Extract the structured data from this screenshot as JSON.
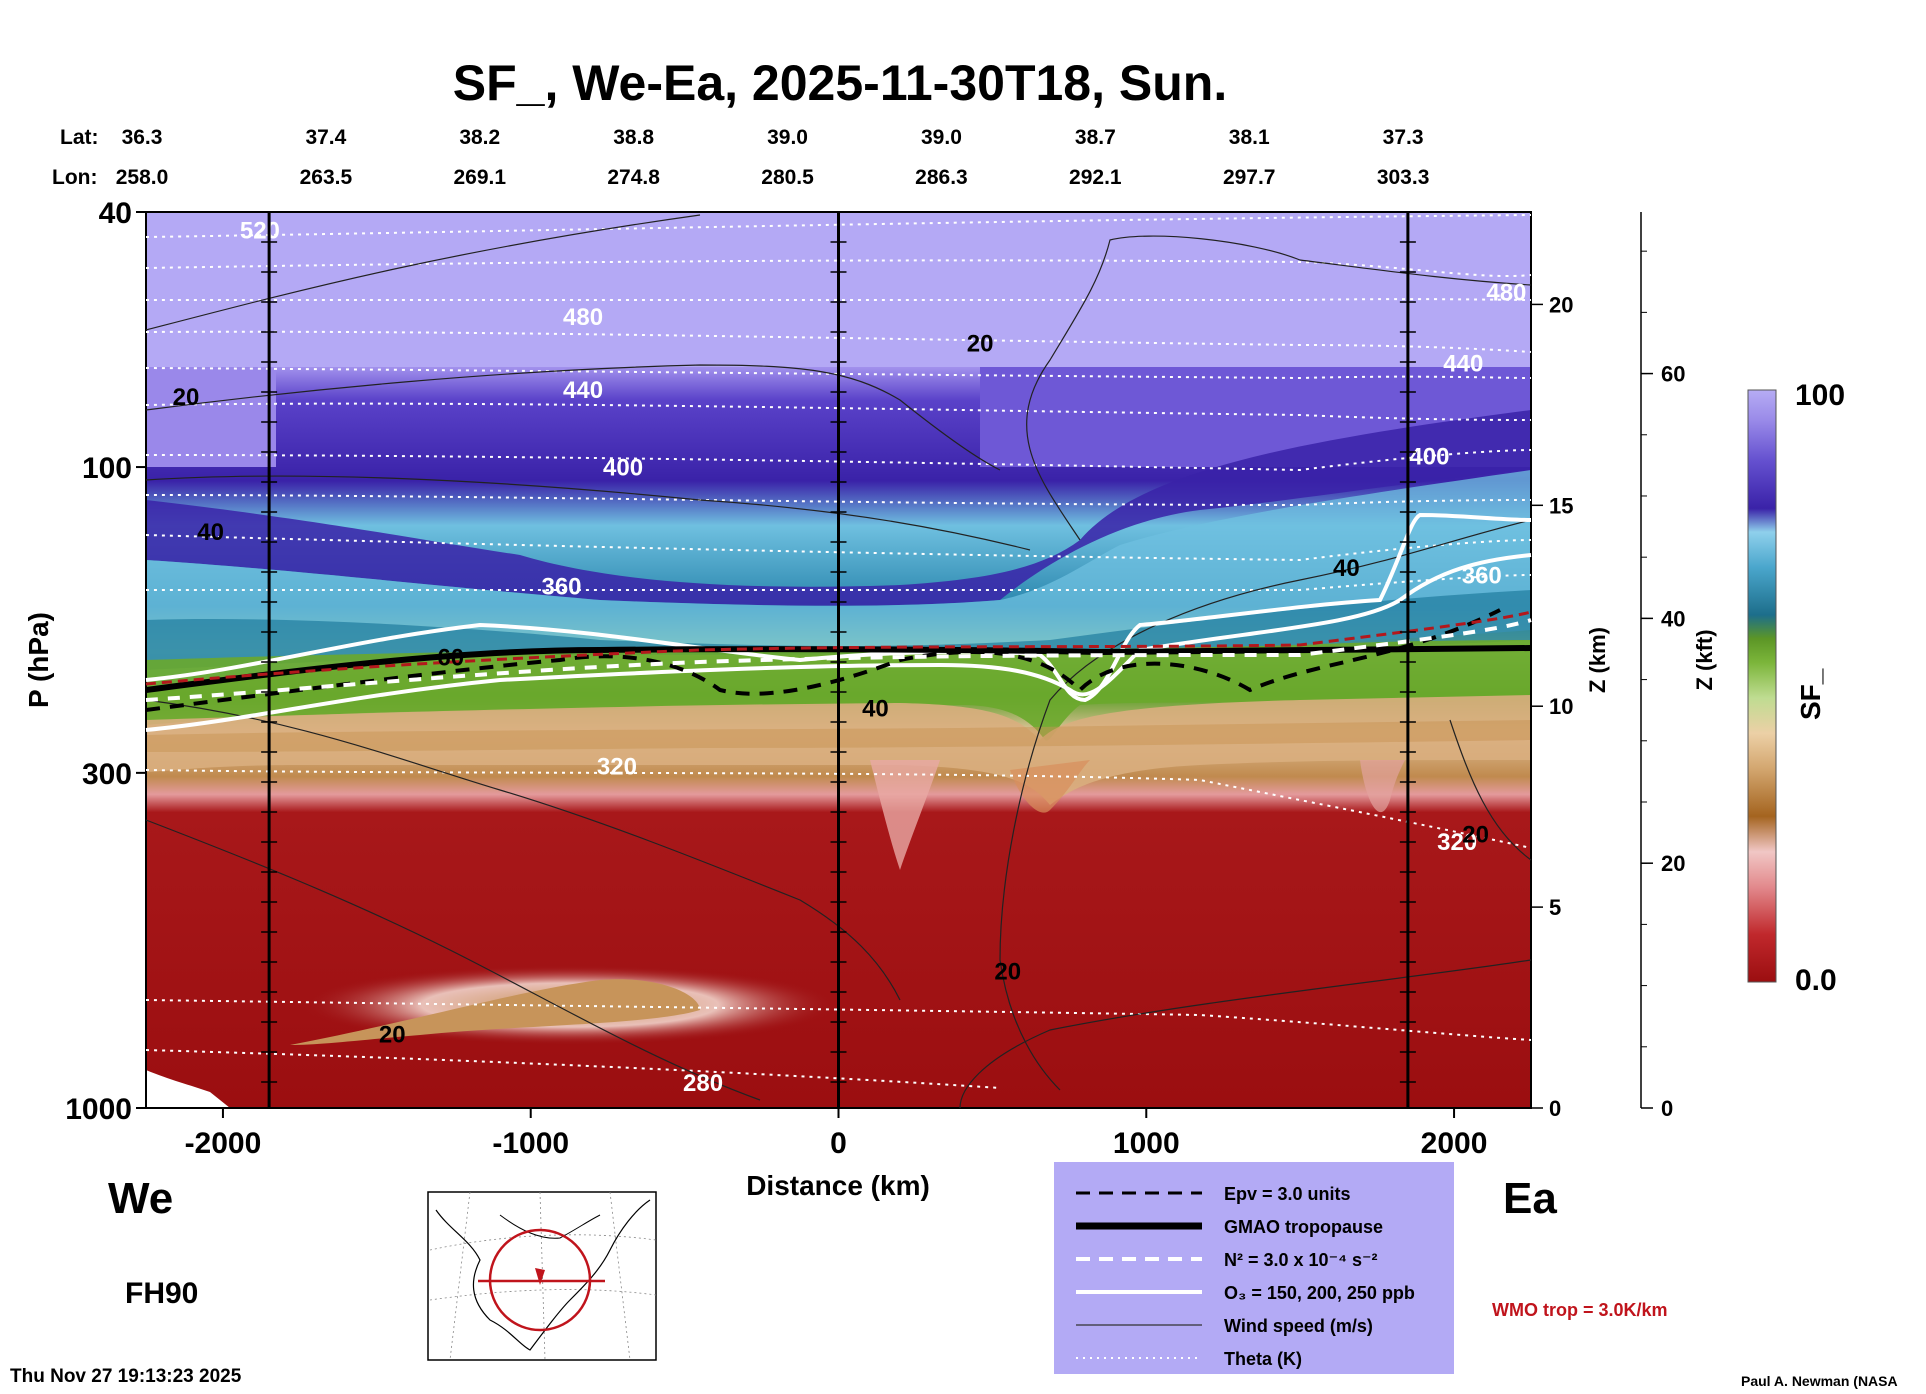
{
  "chart_data": {
    "type": "heatmap",
    "title": "SF_, We-Ea, 2025-11-30T18, Sun.",
    "xlabel": "Distance (km)",
    "ylabel": "P (hPa)",
    "y2label": "Z (km)",
    "y3label": "Z (kft)",
    "colorbar_label": "SF_",
    "colorbar_range": [
      0.0,
      100
    ],
    "colorbar_max_label": "100",
    "colorbar_min_label": "0.0",
    "xlim": [
      -2250,
      2250
    ],
    "ylim_hpa": [
      1000,
      40
    ],
    "x_ticks": [
      {
        "value": -2000,
        "label": "-2000"
      },
      {
        "value": -1000,
        "label": "-1000"
      },
      {
        "value": 0,
        "label": "0"
      },
      {
        "value": 1000,
        "label": "1000"
      },
      {
        "value": 2000,
        "label": "2000"
      }
    ],
    "p_ticks": [
      {
        "value": 40,
        "label": "40"
      },
      {
        "value": 100,
        "label": "100"
      },
      {
        "value": 300,
        "label": "300"
      },
      {
        "value": 1000,
        "label": "1000"
      }
    ],
    "z_km_ticks": [
      {
        "value": 0,
        "label": "0"
      },
      {
        "value": 5,
        "label": "5"
      },
      {
        "value": 10,
        "label": "10"
      },
      {
        "value": 15,
        "label": "15"
      },
      {
        "value": 20,
        "label": "20"
      }
    ],
    "z_kft_ticks": [
      {
        "value": 0,
        "label": "0"
      },
      {
        "value": 20,
        "label": "20"
      },
      {
        "value": 40,
        "label": "40"
      },
      {
        "value": 60,
        "label": "60"
      }
    ],
    "lat_header": "Lat:",
    "lon_header": "Lon:",
    "positions": [
      {
        "lat": "36.3",
        "lon": "258.0",
        "x": -2250
      },
      {
        "lat": "37.4",
        "lon": "263.5",
        "x": -1750
      },
      {
        "lat": "38.2",
        "lon": "269.1",
        "x": -1250
      },
      {
        "lat": "38.8",
        "lon": "274.8",
        "x": -750
      },
      {
        "lat": "39.0",
        "lon": "280.5",
        "x": -250
      },
      {
        "lat": "39.0",
        "lon": "286.3",
        "x": 250
      },
      {
        "lat": "38.7",
        "lon": "292.1",
        "x": 750
      },
      {
        "lat": "38.1",
        "lon": "297.7",
        "x": 1250
      },
      {
        "lat": "37.3",
        "lon": "303.3",
        "x": 1750
      }
    ],
    "vertical_markers_km": [
      -1850,
      0,
      1850
    ],
    "theta_labels": [
      {
        "text": "520",
        "x": -1880,
        "p": 44
      },
      {
        "text": "480",
        "x": -830,
        "p": 60
      },
      {
        "text": "440",
        "x": -830,
        "p": 78
      },
      {
        "text": "400",
        "x": -700,
        "p": 103
      },
      {
        "text": "360",
        "x": -900,
        "p": 158
      },
      {
        "text": "320",
        "x": -720,
        "p": 302
      },
      {
        "text": "280",
        "x": -440,
        "p": 940
      },
      {
        "text": "480",
        "x": 2170,
        "p": 55
      },
      {
        "text": "440",
        "x": 2030,
        "p": 71
      },
      {
        "text": "400",
        "x": 1920,
        "p": 99
      },
      {
        "text": "360",
        "x": 2090,
        "p": 152
      },
      {
        "text": "320",
        "x": 2010,
        "p": 396
      }
    ],
    "wind_labels": [
      {
        "text": "20",
        "x": -2120,
        "p": 80
      },
      {
        "text": "40",
        "x": -2040,
        "p": 130
      },
      {
        "text": "60",
        "x": -1260,
        "p": 204
      },
      {
        "text": "20",
        "x": 460,
        "p": 66
      },
      {
        "text": "40",
        "x": 120,
        "p": 245
      },
      {
        "text": "40",
        "x": 1650,
        "p": 148
      },
      {
        "text": "20",
        "x": 550,
        "p": 630
      },
      {
        "text": "20",
        "x": -1450,
        "p": 790
      },
      {
        "text": "20",
        "x": 2070,
        "p": 385
      }
    ],
    "legend_title_stub": "WMO trop = 3.0K/km"
  },
  "legend": {
    "items": [
      {
        "label": "Epv = 3.0 units",
        "style": "dashed-black"
      },
      {
        "label": "GMAO tropopause",
        "style": "thick-black"
      },
      {
        "label": "N² = 3.0 x 10⁻⁴ s⁻²",
        "style": "dashed-white"
      },
      {
        "label": "O₃ = 150, 200, 250 ppb",
        "style": "thick-white"
      },
      {
        "label": "Wind speed (m/s)",
        "style": "thin-black"
      },
      {
        "label": "Theta (K)",
        "style": "dotted-white"
      }
    ],
    "bg_color": "#b3aaf5",
    "wmo_trop": "WMO trop = 3.0K/km",
    "wmo_color": "#c0141c"
  },
  "labels": {
    "west": "We",
    "east": "Ea",
    "forecast_hour": "FH90",
    "timestamp": "Thu Nov 27 19:13:23 2025",
    "credit": "Paul A. Newman (NASA"
  },
  "colors": {
    "purple_top": "#b4a9f5",
    "purple_mid": "#6e58d6",
    "blue_dark": "#3220a8",
    "cyan": "#7fc8e6",
    "teal": "#1e7ea0",
    "green": "#6aa82c",
    "tan": "#d9ae7e",
    "red_dark": "#9b0e10"
  },
  "colorbar_stops": [
    "#9b0e10",
    "#b51f22",
    "#d0555a",
    "#e7a0a0",
    "#f0c4c4",
    "#a56522",
    "#c9944f",
    "#e3c399",
    "#b8d98e",
    "#8bc34a",
    "#5a9a27",
    "#1c6f8c",
    "#2f8fb4",
    "#63b7d9",
    "#93d3ee",
    "#3a22a8",
    "#5537c4",
    "#6e57d6",
    "#8a76e3",
    "#a396ec",
    "#b7adf4"
  ]
}
